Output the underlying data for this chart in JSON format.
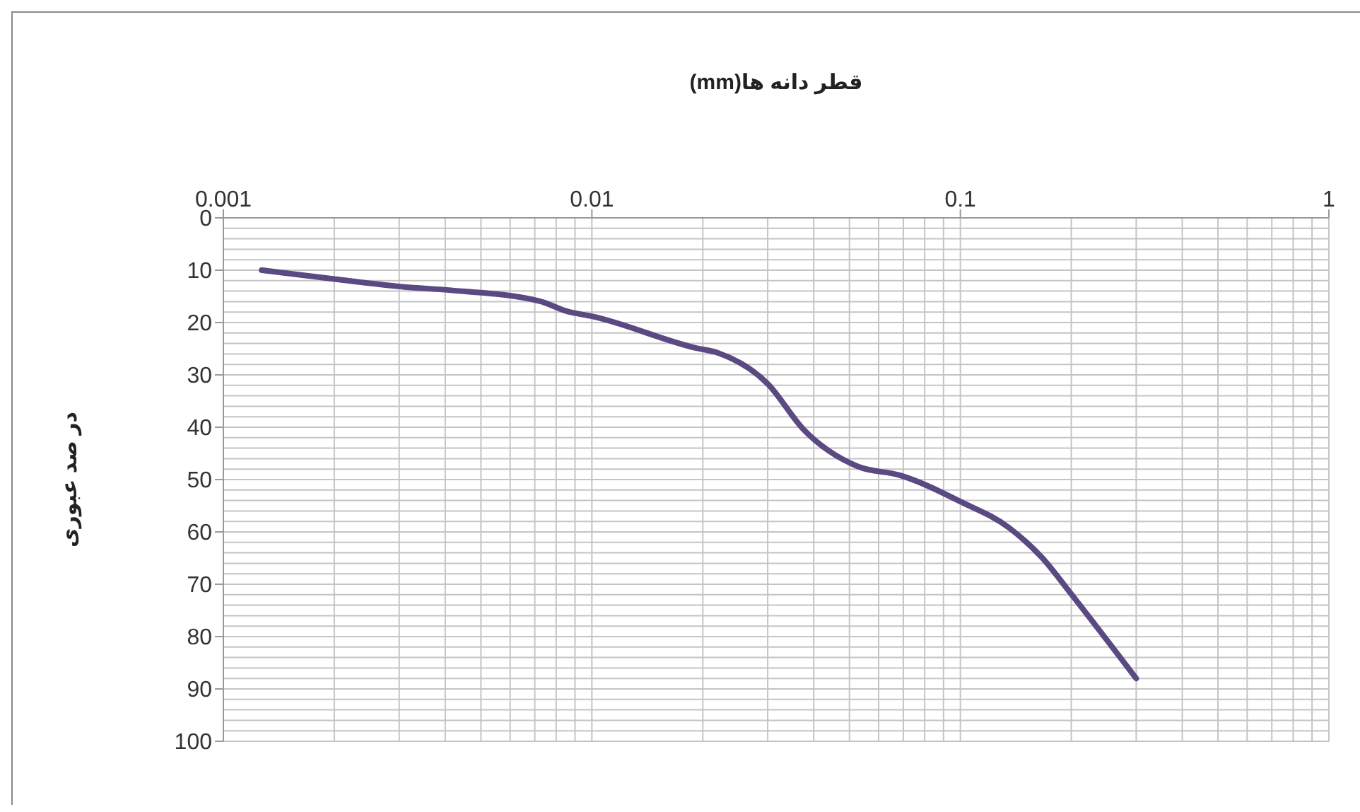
{
  "chart_data": {
    "type": "line",
    "xlabel": "قطر دانه ها(mm)",
    "ylabel": "در صد عبوری",
    "log": "x",
    "x": [
      0.00127,
      0.002,
      0.0031,
      0.0041,
      0.0072,
      0.0086,
      0.01,
      0.019,
      0.022,
      0.03,
      0.0375,
      0.0527,
      0.0687,
      0.1,
      0.1355,
      0.167,
      0.199,
      0.3
    ],
    "series": [
      {
        "color": "#5b4a82",
        "values": [
          10,
          11.7,
          13.2,
          13.8,
          15.9,
          17.9,
          18.8,
          24.8,
          25.8,
          31.7,
          40.4,
          47.5,
          49.2,
          54.2,
          59.2,
          65,
          71.7,
          88
        ]
      }
    ],
    "xlim": [
      0.001,
      1
    ],
    "xticks": [
      0.001,
      0.01,
      0.1,
      1
    ],
    "ylim": [
      100,
      0
    ],
    "yticks": [
      0,
      10,
      20,
      30,
      40,
      50,
      60,
      70,
      80,
      90,
      100
    ],
    "grid": true,
    "marker": "none",
    "line_style": "solid"
  }
}
